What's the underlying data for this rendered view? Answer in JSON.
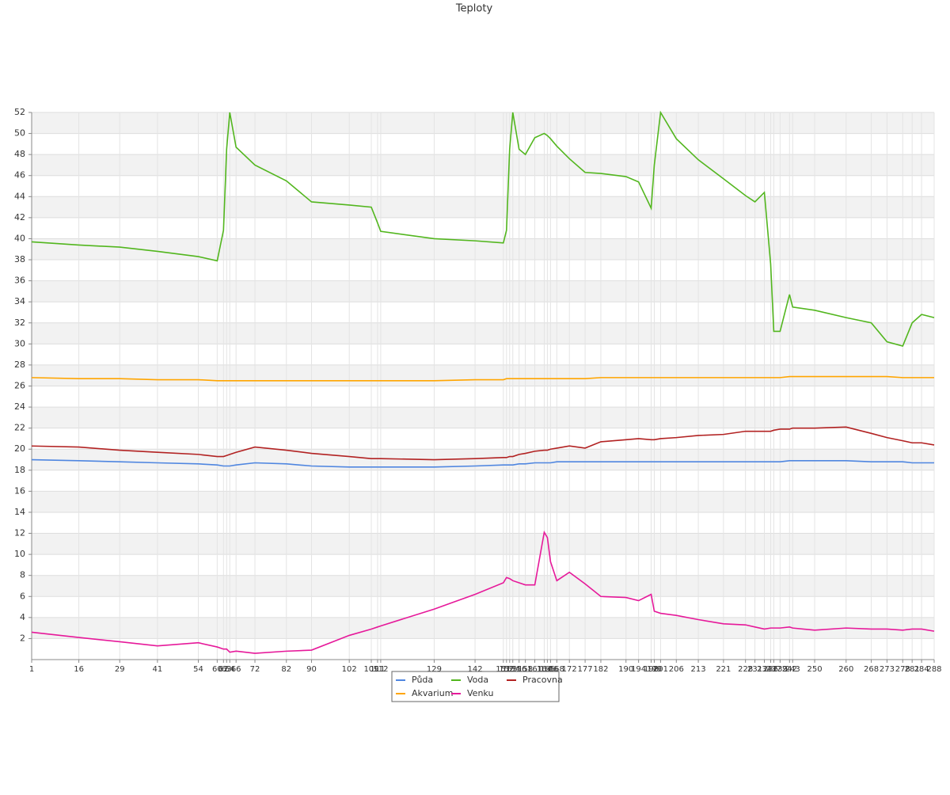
{
  "chart_data": {
    "type": "line",
    "title": "Teploty",
    "x": [
      1,
      16,
      29,
      41,
      54,
      60,
      62,
      63,
      64,
      66,
      72,
      82,
      90,
      102,
      109,
      111,
      112,
      129,
      142,
      151,
      152,
      153,
      154,
      156,
      158,
      161,
      164,
      165,
      166,
      168,
      172,
      177,
      182,
      190,
      194,
      198,
      199,
      201,
      206,
      213,
      221,
      228,
      231,
      234,
      236,
      237,
      239,
      242,
      243,
      250,
      260,
      268,
      273,
      278,
      281,
      284,
      288
    ],
    "xlim": [
      1,
      288
    ],
    "ylim": [
      0,
      52
    ],
    "yticks": [
      2,
      4,
      6,
      8,
      10,
      12,
      14,
      16,
      18,
      20,
      22,
      24,
      26,
      28,
      30,
      32,
      34,
      36,
      38,
      40,
      42,
      44,
      46,
      48,
      50,
      52
    ],
    "grid": true,
    "legend": "bottom",
    "series": [
      {
        "name": "Půda",
        "color": "#4f86e0",
        "values": [
          19.0,
          18.9,
          18.8,
          18.7,
          18.6,
          18.5,
          18.4,
          18.4,
          18.4,
          18.5,
          18.7,
          18.6,
          18.4,
          18.3,
          18.3,
          18.3,
          18.3,
          18.3,
          18.4,
          18.5,
          18.5,
          18.5,
          18.5,
          18.6,
          18.6,
          18.7,
          18.7,
          18.7,
          18.7,
          18.8,
          18.8,
          18.8,
          18.8,
          18.8,
          18.8,
          18.8,
          18.8,
          18.8,
          18.8,
          18.8,
          18.8,
          18.8,
          18.8,
          18.8,
          18.8,
          18.8,
          18.8,
          18.9,
          18.9,
          18.9,
          18.9,
          18.8,
          18.8,
          18.8,
          18.7,
          18.7,
          18.7
        ]
      },
      {
        "name": "Voda",
        "color": "#52b61e",
        "values": [
          39.7,
          39.4,
          39.2,
          38.8,
          38.3,
          37.9,
          40.8,
          48.5,
          52,
          48.7,
          47,
          45.5,
          43.5,
          43.2,
          43,
          41.5,
          40.7,
          40,
          39.8,
          39.6,
          40.8,
          48.5,
          52,
          48.5,
          48,
          49.6,
          50,
          49.8,
          49.5,
          48.8,
          47.6,
          46.3,
          46.2,
          45.9,
          45.4,
          42.9,
          47,
          52,
          49.5,
          47.5,
          45.7,
          44.1,
          43.5,
          44.4,
          37.6,
          31.2,
          31.2,
          34.7,
          33.5,
          33.2,
          32.5,
          32,
          30.2,
          29.8,
          32,
          32.8,
          32.5
        ]
      },
      {
        "name": "Pracovna",
        "color": "#b22222",
        "values": [
          20.3,
          20.2,
          19.9,
          19.7,
          19.5,
          19.3,
          19.3,
          19.4,
          19.5,
          19.7,
          20.2,
          19.9,
          19.6,
          19.3,
          19.1,
          19.1,
          19.1,
          19,
          19.1,
          19.2,
          19.2,
          19.3,
          19.3,
          19.5,
          19.6,
          19.8,
          19.9,
          19.9,
          20,
          20.1,
          20.3,
          20.1,
          20.7,
          20.9,
          21,
          20.9,
          20.9,
          21,
          21.1,
          21.3,
          21.4,
          21.7,
          21.7,
          21.7,
          21.7,
          21.8,
          21.9,
          21.9,
          22,
          22,
          22.1,
          21.5,
          21.1,
          20.8,
          20.6,
          20.6,
          20.4
        ]
      },
      {
        "name": "Akvarium",
        "color": "#ffa500",
        "values": [
          26.8,
          26.7,
          26.7,
          26.6,
          26.6,
          26.5,
          26.5,
          26.5,
          26.5,
          26.5,
          26.5,
          26.5,
          26.5,
          26.5,
          26.5,
          26.5,
          26.5,
          26.5,
          26.6,
          26.6,
          26.7,
          26.7,
          26.7,
          26.7,
          26.7,
          26.7,
          26.7,
          26.7,
          26.7,
          26.7,
          26.7,
          26.7,
          26.8,
          26.8,
          26.8,
          26.8,
          26.8,
          26.8,
          26.8,
          26.8,
          26.8,
          26.8,
          26.8,
          26.8,
          26.8,
          26.8,
          26.8,
          26.9,
          26.9,
          26.9,
          26.9,
          26.9,
          26.9,
          26.8,
          26.8,
          26.8,
          26.8
        ]
      },
      {
        "name": "Venku",
        "color": "#e6199a",
        "values": [
          2.6,
          2.1,
          1.7,
          1.3,
          1.6,
          1.2,
          1.0,
          1.0,
          0.7,
          0.8,
          0.6,
          0.8,
          0.9,
          2.3,
          2.9,
          3.1,
          3.2,
          4.8,
          6.2,
          7.3,
          7.8,
          7.7,
          7.5,
          7.3,
          7.1,
          7.1,
          12.1,
          11.6,
          9.3,
          7.5,
          8.3,
          7.2,
          6.0,
          5.9,
          5.6,
          6.2,
          4.6,
          4.4,
          4.2,
          3.8,
          3.4,
          3.3,
          3.1,
          2.9,
          3.0,
          3.0,
          3.0,
          3.1,
          3.0,
          2.8,
          3.0,
          2.9,
          2.9,
          2.8,
          2.9,
          2.9,
          2.7
        ]
      }
    ]
  }
}
